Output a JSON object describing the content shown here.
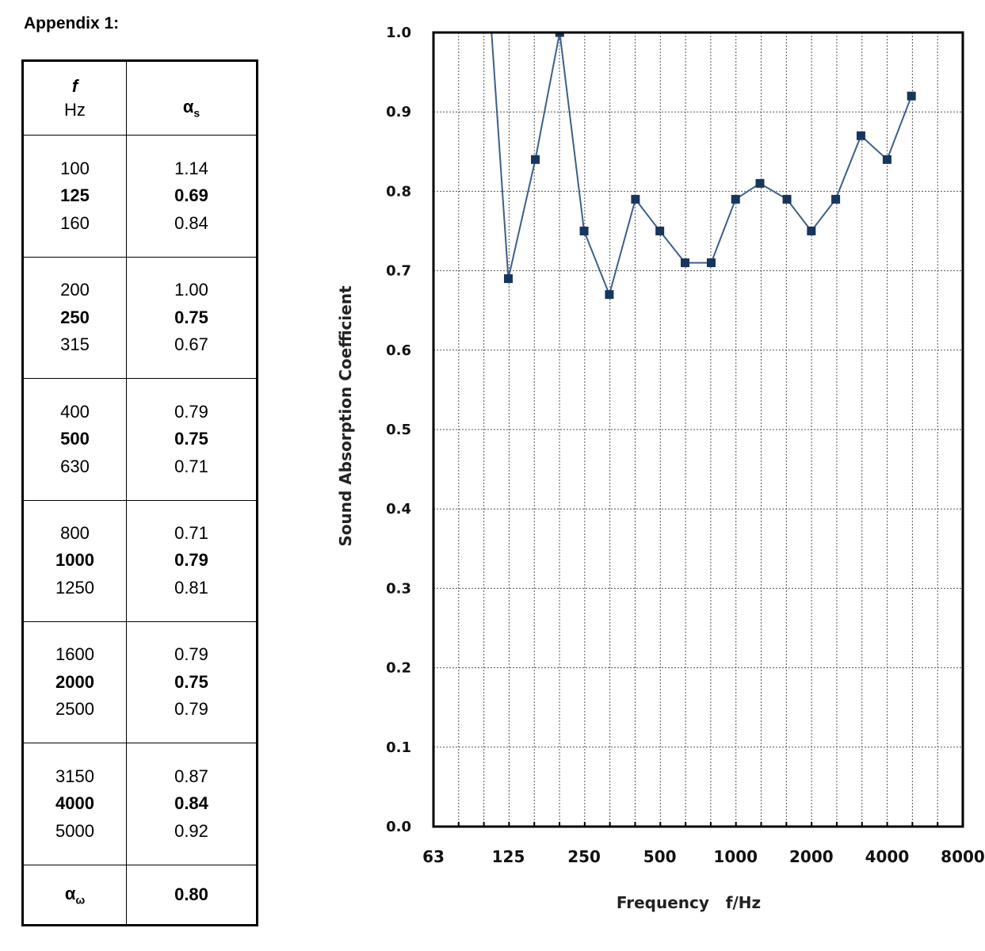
{
  "appendix_title": "Appendix 1:",
  "table": {
    "header_f": "f",
    "header_hz": "Hz",
    "header_alpha": "α",
    "header_alpha_sub": "s",
    "groups": [
      {
        "f": [
          "100",
          "125",
          "160"
        ],
        "a": [
          "1.14",
          "0.69",
          "0.84"
        ]
      },
      {
        "f": [
          "200",
          "250",
          "315"
        ],
        "a": [
          "1.00",
          "0.75",
          "0.67"
        ]
      },
      {
        "f": [
          "400",
          "500",
          "630"
        ],
        "a": [
          "0.79",
          "0.75",
          "0.71"
        ]
      },
      {
        "f": [
          "800",
          "1000",
          "1250"
        ],
        "a": [
          "0.71",
          "0.79",
          "0.81"
        ]
      },
      {
        "f": [
          "1600",
          "2000",
          "2500"
        ],
        "a": [
          "0.79",
          "0.75",
          "0.79"
        ]
      },
      {
        "f": [
          "3150",
          "4000",
          "5000"
        ],
        "a": [
          "0.87",
          "0.84",
          "0.92"
        ]
      }
    ],
    "total_label": "α",
    "total_label_sub": "ω",
    "total_value": "0.80"
  },
  "chart_data": {
    "type": "line",
    "xlabel": "Frequency   f/Hz",
    "ylabel": "Sound Absorption Coefficient",
    "x_tick_labels": [
      "63",
      "125",
      "250",
      "500",
      "1000",
      "2000",
      "4000",
      "8000"
    ],
    "y_tick_labels": [
      "0.0",
      "0.1",
      "0.2",
      "0.3",
      "0.4",
      "0.5",
      "0.6",
      "0.7",
      "0.8",
      "0.9",
      "1.0"
    ],
    "ylim": [
      0,
      1.0
    ],
    "xlim": [
      63,
      8000
    ],
    "x_scale": "log (1/3-octave bands)",
    "grid": true,
    "line_color": "#3d5f8a",
    "marker_color": "#17365d",
    "series": [
      {
        "x": [
          100,
          125,
          160,
          200,
          250,
          315,
          400,
          500,
          630,
          800,
          1000,
          1250,
          1600,
          2000,
          2500,
          3150,
          4000,
          5000
        ],
        "values": [
          1.14,
          0.69,
          0.84,
          1.0,
          0.75,
          0.67,
          0.79,
          0.75,
          0.71,
          0.71,
          0.79,
          0.81,
          0.79,
          0.75,
          0.79,
          0.87,
          0.84,
          0.92
        ]
      }
    ]
  }
}
